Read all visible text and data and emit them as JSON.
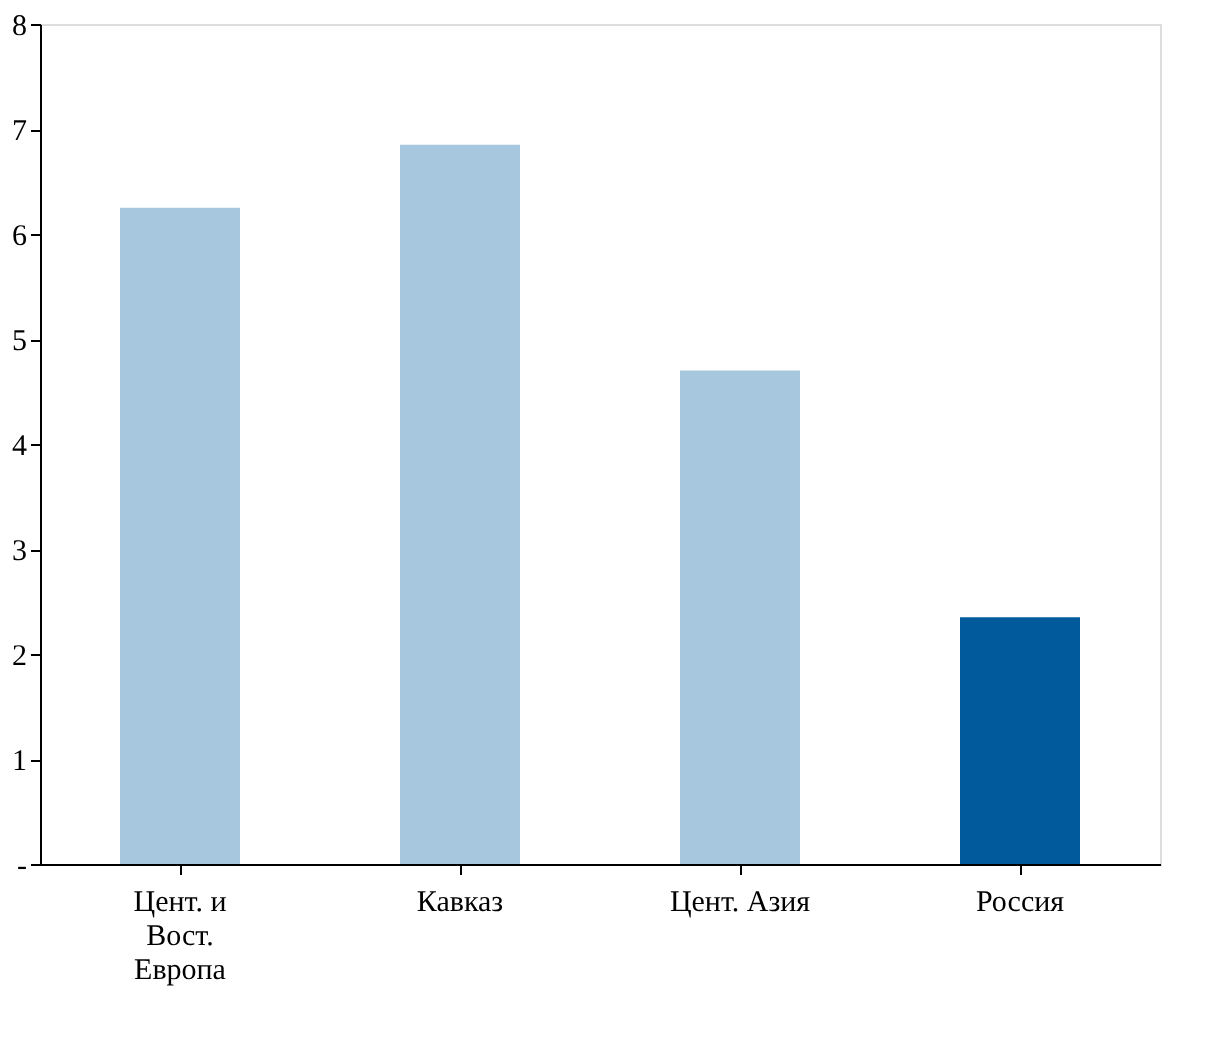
{
  "chart_data": {
    "type": "bar",
    "categories": [
      "Цент. и\nВост.\nЕвропа",
      "Кавказ",
      "Цент. Азия",
      "Россия"
    ],
    "values": [
      6.25,
      6.85,
      4.7,
      2.35
    ],
    "colors": [
      "#a7c7de",
      "#a7c7de",
      "#a7c7de",
      "#005a9c"
    ],
    "ylim": [
      0,
      8
    ],
    "yticks": [
      {
        "value": 0,
        "label": "-"
      },
      1,
      2,
      3,
      4,
      5,
      6,
      7,
      8
    ],
    "grid": false
  }
}
